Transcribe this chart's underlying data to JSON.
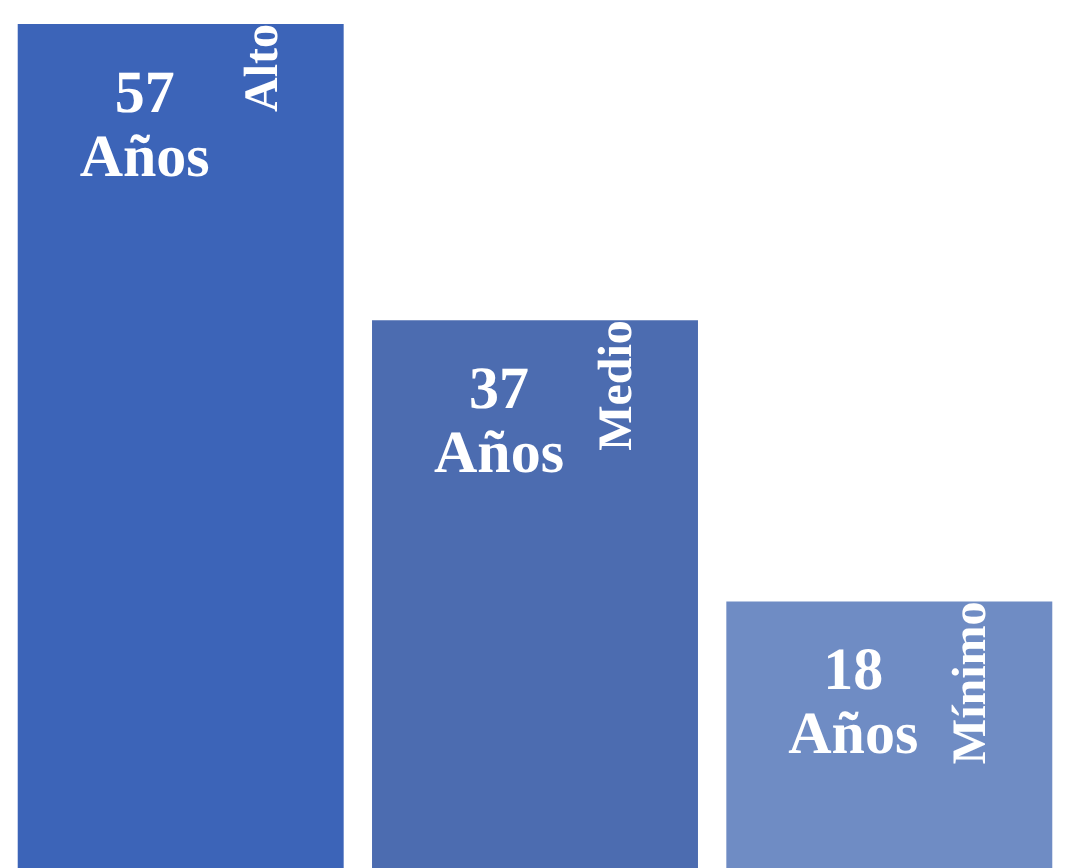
{
  "chart_data": {
    "type": "bar",
    "categories": [
      "Alto",
      "Medio",
      "Mínimo"
    ],
    "values": [
      57,
      37,
      18
    ],
    "colors": [
      "#3c64b8",
      "#4c6cb0",
      "#6f8cc4"
    ],
    "value_labels": [
      "57 Años",
      "37 Años",
      "18 Años"
    ]
  }
}
